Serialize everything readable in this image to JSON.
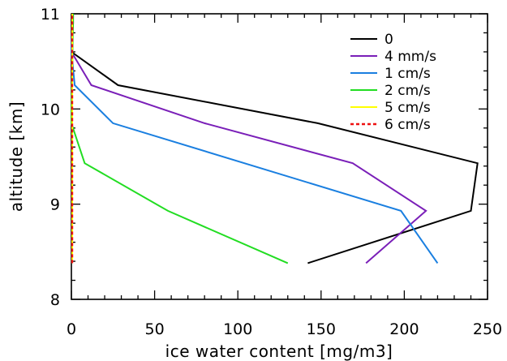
{
  "chart_data": {
    "type": "line",
    "title": "",
    "xlabel": "ice water content [mg/m3]",
    "ylabel": "altitude [km]",
    "xlim": [
      0,
      250
    ],
    "ylim": [
      8,
      11
    ],
    "x_ticks": [
      0,
      50,
      100,
      150,
      200,
      250
    ],
    "x_tick_labels": [
      "0",
      "50",
      "100",
      "150",
      "200",
      "250"
    ],
    "y_ticks": [
      8,
      9,
      10,
      11
    ],
    "y_tick_labels": [
      "8",
      "9",
      "10",
      "11"
    ],
    "grid": false,
    "legend_position": "top-right",
    "series": [
      {
        "name": "0",
        "color": "#000000",
        "dash": false,
        "x": [
          142,
          240,
          244,
          148,
          28,
          0,
          1,
          1
        ],
        "y": [
          8.38,
          8.93,
          9.43,
          9.85,
          10.25,
          10.6,
          10.9,
          11.0
        ]
      },
      {
        "name": "4 mm/s",
        "color": "#7a1fb8",
        "dash": false,
        "x": [
          177,
          213,
          169,
          80,
          12,
          0,
          1
        ],
        "y": [
          8.38,
          8.93,
          9.43,
          9.85,
          10.25,
          10.6,
          11.0
        ]
      },
      {
        "name": "1 cm/s",
        "color": "#1a7fe0",
        "dash": false,
        "x": [
          220,
          198,
          25,
          2,
          0,
          1
        ],
        "y": [
          8.38,
          8.93,
          9.85,
          10.25,
          10.6,
          11.0
        ]
      },
      {
        "name": "2 cm/s",
        "color": "#22dd22",
        "dash": false,
        "x": [
          130,
          58,
          8,
          0,
          1
        ],
        "y": [
          8.38,
          8.93,
          9.43,
          9.85,
          11.0
        ]
      },
      {
        "name": "5 cm/s",
        "color": "#ffff00",
        "dash": false,
        "x": [
          0.5,
          0.5
        ],
        "y": [
          8.38,
          11.0
        ]
      },
      {
        "name": "6 cm/s",
        "color": "#ee1111",
        "dash": true,
        "x": [
          0.5,
          0.5
        ],
        "y": [
          8.38,
          11.0
        ]
      }
    ]
  }
}
